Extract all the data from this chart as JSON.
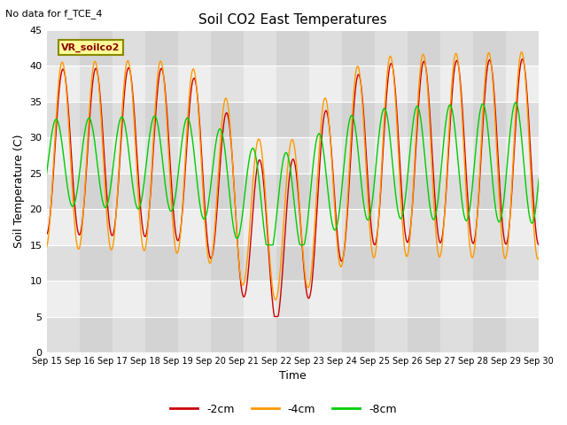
{
  "title": "Soil CO2 East Temperatures",
  "xlabel": "Time",
  "ylabel": "Soil Temperature (C)",
  "no_data_text": "No data for f_TCE_4",
  "legend_box_label": "VR_soilco2",
  "ylim": [
    0,
    45
  ],
  "yticks": [
    0,
    5,
    10,
    15,
    20,
    25,
    30,
    35,
    40,
    45
  ],
  "date_labels": [
    "Sep 15",
    "Sep 16",
    "Sep 17",
    "Sep 18",
    "Sep 19",
    "Sep 20",
    "Sep 21",
    "Sep 22",
    "Sep 23",
    "Sep 24",
    "Sep 25",
    "Sep 26",
    "Sep 27",
    "Sep 28",
    "Sep 29",
    "Sep 30"
  ],
  "colors": {
    "neg2cm": "#cc0000",
    "neg4cm": "#ff9900",
    "neg8cm": "#00cc00"
  },
  "legend_entries": [
    "-2cm",
    "-4cm",
    "-8cm"
  ],
  "background_plot": "#d8d8d8",
  "background_fig": "#ffffff",
  "band_color_light": "#e8e8e8",
  "band_color_dark": "#d0d0d0"
}
